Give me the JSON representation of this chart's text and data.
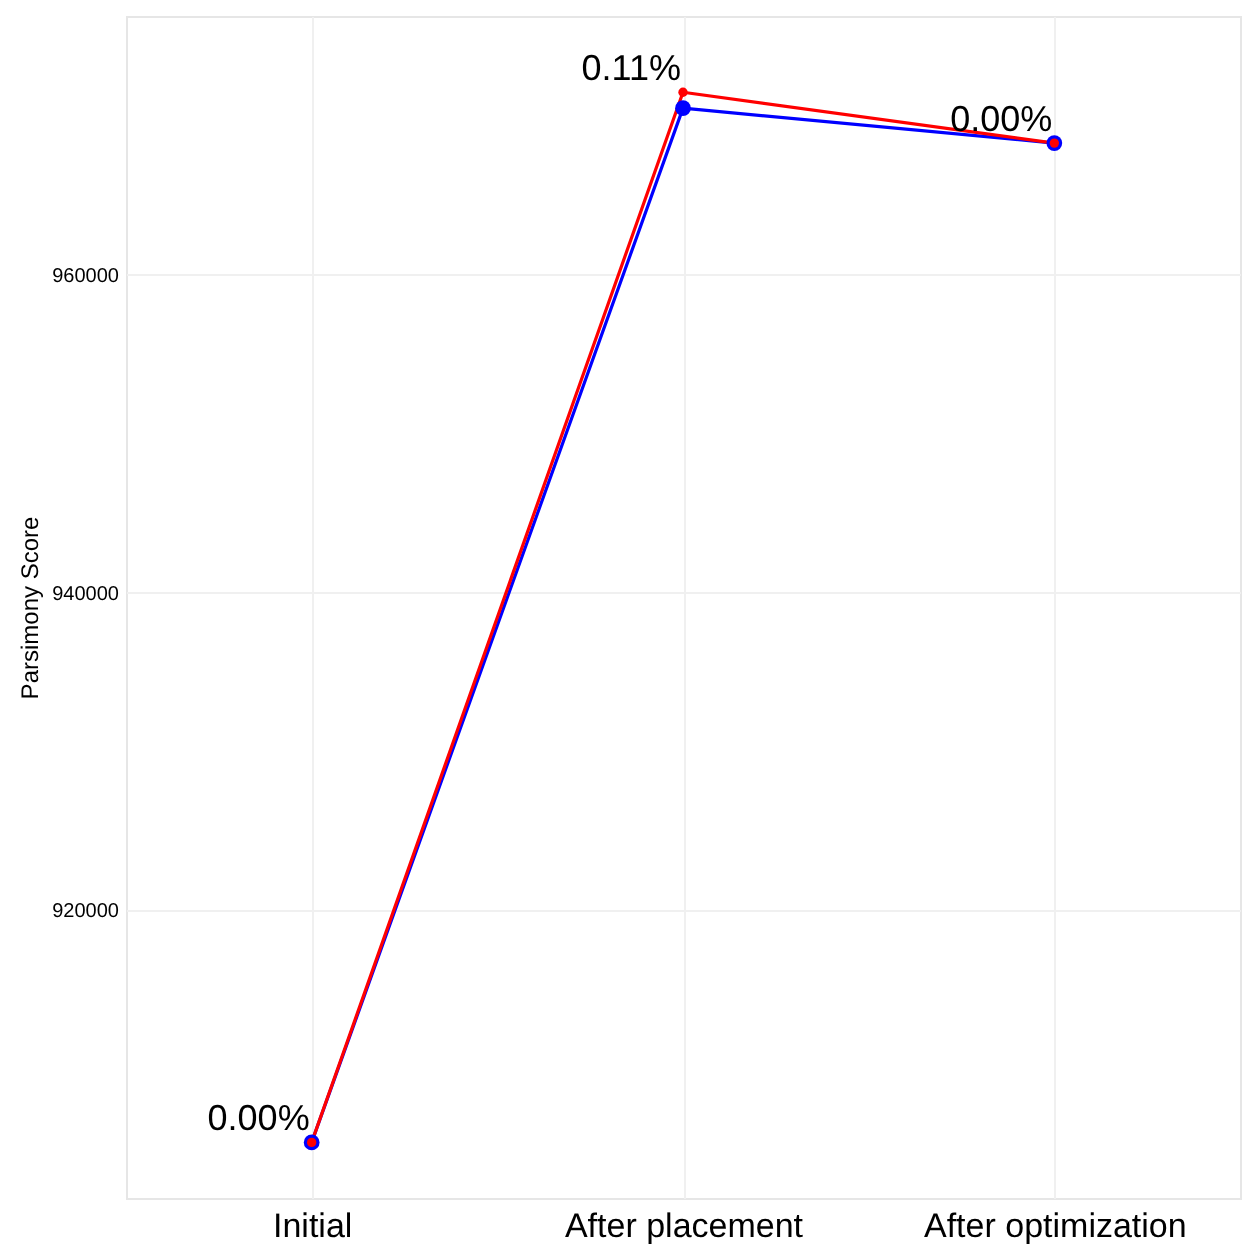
{
  "chart_data": {
    "type": "line",
    "ylabel": "Parsimony Score",
    "categories": [
      "Initial",
      "After placement",
      "After optimization"
    ],
    "series": [
      {
        "color": "#0000ff",
        "values": [
          905400,
          970500,
          968300
        ]
      },
      {
        "color": "#ff0000",
        "values": [
          905400,
          971500,
          968300
        ]
      }
    ],
    "ylim": [
      901900,
      976300
    ],
    "yticks": [
      920000,
      940000,
      960000
    ],
    "annotations": [
      {
        "text": "0.00%",
        "x": "Initial",
        "y": 905400
      },
      {
        "text": "0.11%",
        "x": "After placement",
        "y": 971500
      },
      {
        "text": "0.00%",
        "x": "After optimization",
        "y": 968300
      }
    ],
    "grid": true,
    "marker": "circle",
    "line_style": "solid",
    "legend": false
  }
}
